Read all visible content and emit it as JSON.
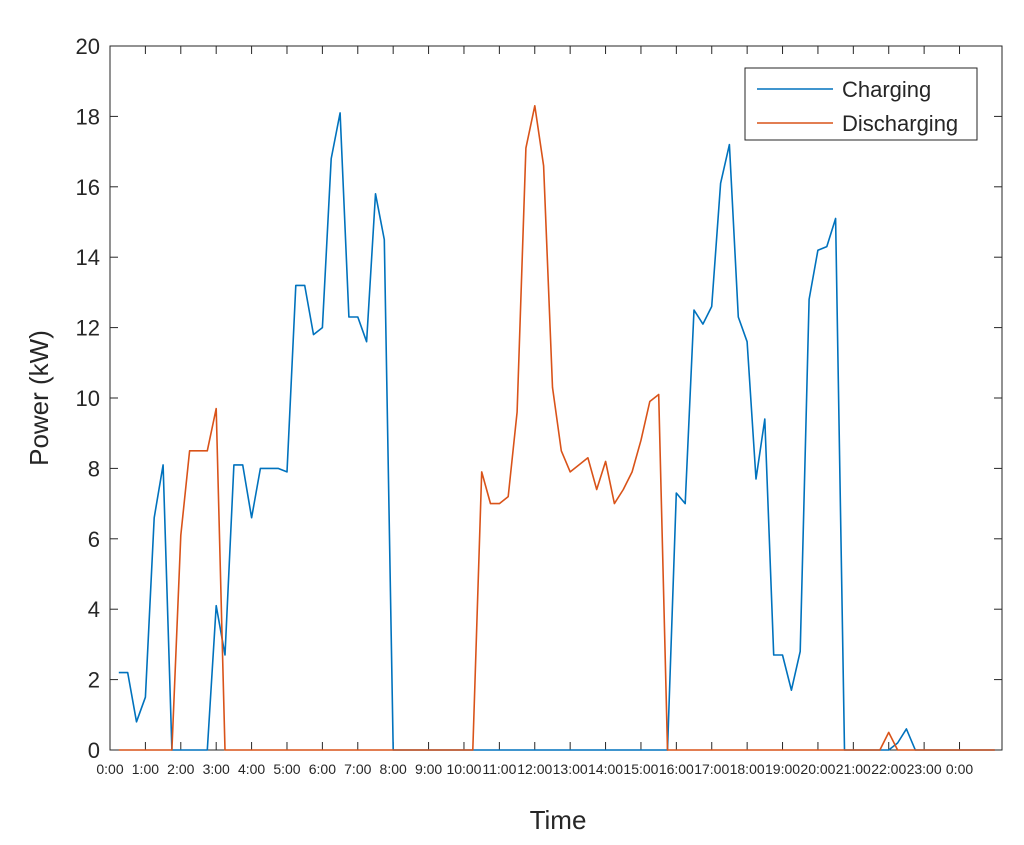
{
  "chart_data": {
    "type": "line",
    "title": "",
    "xlabel": "Time",
    "ylabel": "Power (kW)",
    "ylim": [
      0,
      20
    ],
    "xlim": [
      0,
      25.2
    ],
    "yticks": [
      0,
      2,
      4,
      6,
      8,
      10,
      12,
      14,
      16,
      18,
      20
    ],
    "xtick_labels": [
      "0:00",
      "1:00",
      "2:00",
      "3:00",
      "4:00",
      "5:00",
      "6:00",
      "7:00",
      "8:00",
      "9:00",
      "10:00",
      "11:00",
      "12:00",
      "13:00",
      "14:00",
      "15:00",
      "16:00",
      "17:00",
      "18:00",
      "19:00",
      "20:00",
      "21:00",
      "22:00",
      "23:00",
      "0:00"
    ],
    "grid": false,
    "legend_position": "top-right",
    "series": [
      {
        "name": "Charging",
        "color": "#0072bd",
        "x": [
          0.25,
          0.5,
          0.75,
          1.0,
          1.25,
          1.5,
          1.75,
          2.0,
          2.25,
          2.5,
          2.75,
          3.0,
          3.25,
          3.5,
          3.75,
          4.0,
          4.25,
          4.5,
          4.75,
          5.0,
          5.25,
          5.5,
          5.75,
          6.0,
          6.25,
          6.5,
          6.75,
          7.0,
          7.25,
          7.5,
          7.75,
          8.0,
          8.25,
          9.0,
          10.0,
          11.0,
          12.0,
          13.0,
          14.0,
          15.0,
          15.75,
          16.0,
          16.25,
          16.5,
          16.75,
          17.0,
          17.25,
          17.5,
          17.75,
          18.0,
          18.25,
          18.5,
          18.75,
          19.0,
          19.25,
          19.5,
          19.75,
          20.0,
          20.25,
          20.5,
          20.75,
          21.0,
          21.5,
          22.0,
          22.25,
          22.5,
          22.75,
          23.0,
          24.0,
          25.0
        ],
        "values": [
          2.2,
          2.2,
          0.8,
          1.5,
          6.6,
          8.1,
          0,
          0,
          0,
          0,
          0,
          4.1,
          2.7,
          8.1,
          8.1,
          6.6,
          8.0,
          8.0,
          8.0,
          7.9,
          13.2,
          13.2,
          11.8,
          12.0,
          16.8,
          18.1,
          12.3,
          12.3,
          11.6,
          15.8,
          14.5,
          0,
          0,
          0,
          0,
          0,
          0,
          0,
          0,
          0,
          0,
          7.3,
          7.0,
          12.5,
          12.1,
          12.6,
          16.1,
          17.2,
          12.3,
          11.6,
          7.7,
          9.4,
          2.7,
          2.7,
          1.7,
          2.8,
          12.8,
          14.2,
          14.3,
          15.1,
          0,
          0,
          0,
          0,
          0.2,
          0.6,
          0,
          0,
          0,
          0
        ]
      },
      {
        "name": "Discharging",
        "color": "#d95319",
        "x": [
          0.25,
          1.0,
          1.5,
          1.75,
          2.0,
          2.25,
          2.5,
          2.75,
          3.0,
          3.25,
          4.0,
          5.0,
          6.0,
          7.0,
          8.0,
          9.0,
          10.0,
          10.25,
          10.5,
          10.75,
          11.0,
          11.25,
          11.5,
          11.75,
          12.0,
          12.25,
          12.5,
          12.75,
          13.0,
          13.25,
          13.5,
          13.75,
          14.0,
          14.25,
          14.5,
          14.75,
          15.0,
          15.25,
          15.5,
          15.75,
          16.0,
          17.0,
          18.0,
          19.0,
          20.0,
          21.0,
          21.75,
          22.0,
          22.25,
          22.5,
          23.0,
          24.0,
          25.0
        ],
        "values": [
          0,
          0,
          0,
          0,
          6.1,
          8.5,
          8.5,
          8.5,
          9.7,
          0,
          0,
          0,
          0,
          0,
          0,
          0,
          0,
          0,
          7.9,
          7.0,
          7.0,
          7.2,
          9.6,
          17.1,
          18.3,
          16.6,
          10.3,
          8.5,
          7.9,
          8.1,
          8.3,
          7.4,
          8.2,
          7.0,
          7.4,
          7.9,
          8.8,
          9.9,
          10.1,
          0,
          0,
          0,
          0,
          0,
          0,
          0,
          0,
          0.5,
          0,
          0,
          0,
          0,
          0
        ]
      }
    ]
  }
}
